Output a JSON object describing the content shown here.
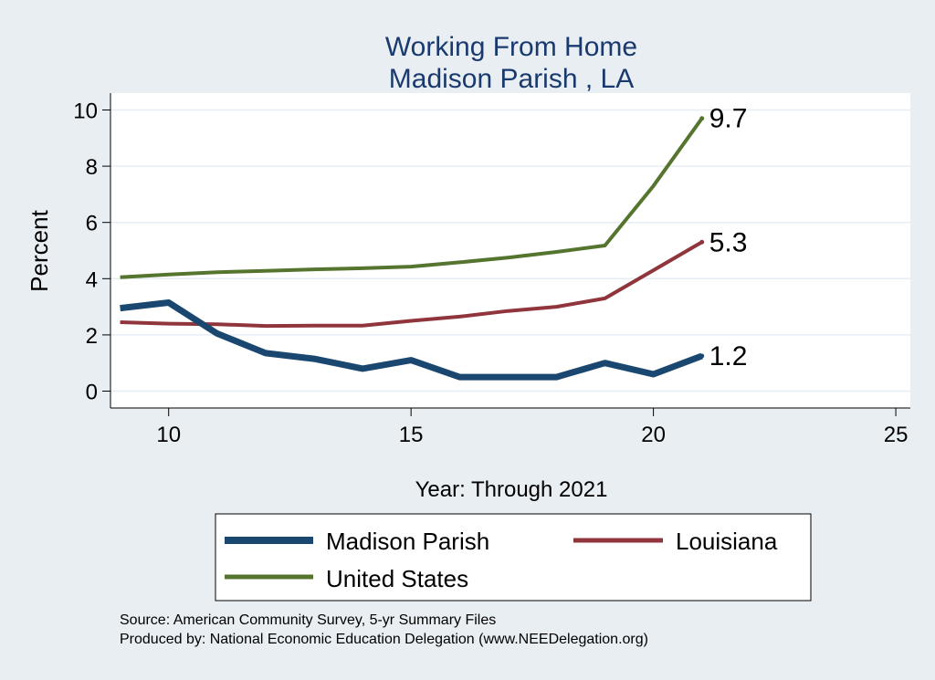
{
  "chart_data": {
    "type": "line",
    "title_lines": [
      "Working From Home",
      "Madison Parish , LA"
    ],
    "xlabel": "Year: Through 2021",
    "ylabel": "Percent",
    "xlim": [
      8.8,
      25.3
    ],
    "ylim": [
      -0.6,
      10.6
    ],
    "x_ticks": [
      10,
      15,
      20,
      25
    ],
    "y_ticks": [
      0,
      2,
      4,
      6,
      8,
      10
    ],
    "grid": true,
    "legend_position": "bottom",
    "series": [
      {
        "name": "Madison Parish",
        "color": "#1a476f",
        "line_weight": "thick",
        "x": [
          9,
          10,
          11,
          12,
          13,
          14,
          15,
          16,
          17,
          18,
          19,
          20,
          21
        ],
        "values": [
          2.95,
          3.15,
          2.05,
          1.35,
          1.15,
          0.8,
          1.1,
          0.5,
          0.5,
          0.5,
          1.0,
          0.6,
          1.25
        ],
        "end_label": "1.2"
      },
      {
        "name": "Louisiana",
        "color": "#90353b",
        "line_weight": "medium",
        "x": [
          9,
          10,
          11,
          12,
          13,
          14,
          15,
          16,
          17,
          18,
          19,
          20,
          21
        ],
        "values": [
          2.45,
          2.4,
          2.38,
          2.32,
          2.33,
          2.33,
          2.5,
          2.65,
          2.85,
          3.0,
          3.3,
          4.3,
          5.3
        ],
        "end_label": "5.3"
      },
      {
        "name": "United States",
        "color": "#55752f",
        "line_weight": "medium",
        "x": [
          9,
          10,
          11,
          12,
          13,
          14,
          15,
          16,
          17,
          18,
          19,
          20,
          21
        ],
        "values": [
          4.05,
          4.15,
          4.23,
          4.28,
          4.33,
          4.37,
          4.43,
          4.58,
          4.75,
          4.95,
          5.18,
          7.3,
          9.7
        ],
        "end_label": "9.7"
      }
    ],
    "notes": [
      "Source: American Community Survey, 5-yr Summary Files",
      "Produced by: National Economic Education Delegation (www.NEEDelegation.org)"
    ]
  }
}
